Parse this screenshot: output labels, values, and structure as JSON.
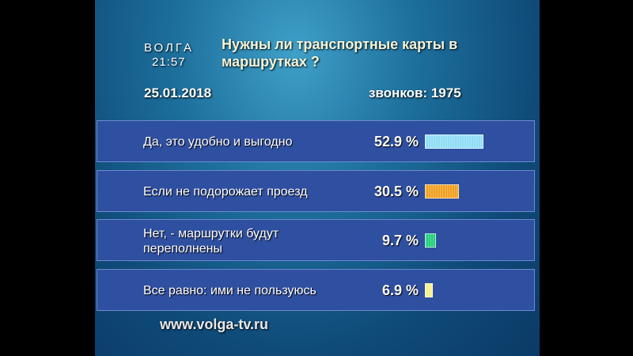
{
  "chart_data": {
    "type": "bar",
    "channel": "ВОЛГА",
    "time": "21:57",
    "title": "Нужны ли транспортные карты в маршрутках ?",
    "date": "25.01.2018",
    "calls": "звонков: 1975",
    "categories": [
      "Да, это удобно и выгодно",
      "Если не подорожает проезд",
      "Нет, - маршрутки будут переполнены",
      "Все равно: ими не пользуюсь"
    ],
    "values": [
      52.9,
      30.5,
      9.7,
      6.9
    ],
    "value_labels": [
      "52.9 %",
      "30.5 %",
      "9.7 %",
      "6.9 %"
    ],
    "colors": [
      "#8fdcf4",
      "#f0a020",
      "#22d07a",
      "#f4f08a"
    ],
    "footer": "www.volga-tv.ru"
  }
}
